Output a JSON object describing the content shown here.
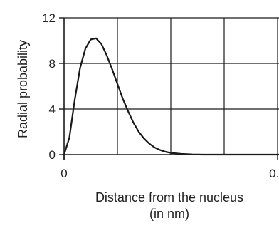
{
  "chart_data": {
    "type": "line",
    "title": "",
    "xlabel_line1": "Distance from the nucleus",
    "xlabel_line2": "(in nm)",
    "ylabel": "Radial probability",
    "xlim": [
      0,
      1.0
    ],
    "ylim": [
      0,
      12
    ],
    "x_ticks": [
      0,
      0.4,
      0.8
    ],
    "x_tick_labels": [
      "0",
      "0.4",
      "0.8"
    ],
    "y_ticks": [
      0,
      4,
      8,
      12
    ],
    "y_tick_labels": [
      "0",
      "4",
      "8",
      "12"
    ],
    "grid": true,
    "series": [
      {
        "x": [
          0,
          0.01,
          0.02,
          0.03,
          0.04,
          0.05,
          0.06,
          0.07,
          0.08,
          0.09,
          0.1,
          0.11,
          0.12,
          0.13,
          0.14,
          0.15,
          0.16,
          0.17,
          0.18,
          0.19,
          0.2,
          0.22,
          0.24,
          0.26,
          0.3,
          0.4,
          0.6,
          0.8,
          1.0
        ],
        "y": [
          0,
          1.5,
          4.8,
          7.6,
          9.3,
          10.1,
          10.2,
          9.7,
          8.7,
          7.5,
          6.2,
          4.9,
          3.8,
          2.8,
          2.0,
          1.4,
          0.95,
          0.62,
          0.4,
          0.25,
          0.15,
          0.06,
          0.02,
          0.0,
          0.0,
          0.0,
          0.0,
          0.0,
          0.0
        ]
      }
    ]
  }
}
